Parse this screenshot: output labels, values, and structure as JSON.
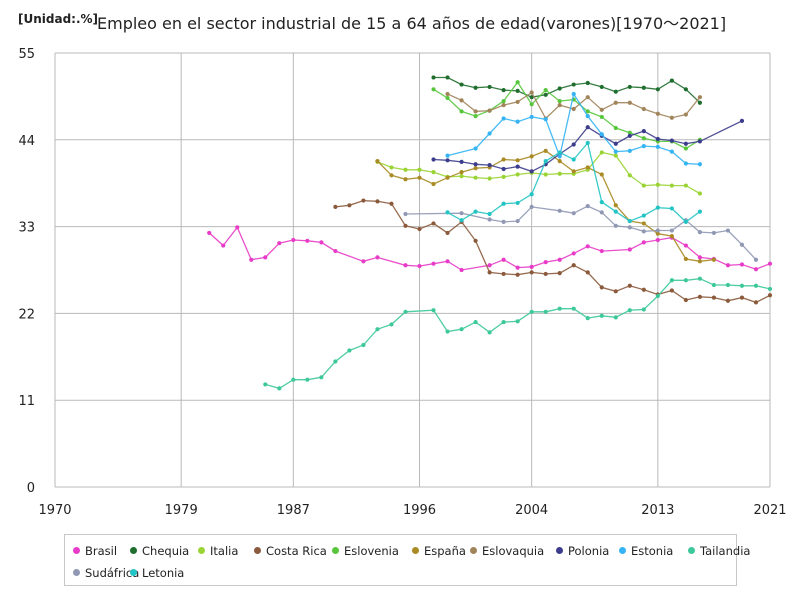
{
  "unit_label": "[Unidad:.%]",
  "title": "Empleo en el sector industrial de 15 a 64 años de edad(varones)[1970～2021]",
  "chart_data": {
    "type": "line",
    "title": "Empleo en el sector industrial de 15 a 64 años de edad(varones)[1970～2021]",
    "unit": "[Unidad:.%]",
    "xlim": [
      1970,
      2021
    ],
    "ylim": [
      0,
      55
    ],
    "x_ticks": [
      "1970",
      "1979",
      "1987",
      "1996",
      "2004",
      "2013",
      "2021"
    ],
    "y_ticks": [
      "0",
      "11",
      "22",
      "33",
      "44",
      "55"
    ],
    "grid": true,
    "legend_position": "bottom",
    "series": [
      {
        "name": "Brasil",
        "color": "#e83cc8",
        "points": [
          [
            1981,
            32.2
          ],
          [
            1982,
            30.6
          ],
          [
            1983,
            32.9
          ],
          [
            1984,
            28.8
          ],
          [
            1985,
            29.1
          ],
          [
            1986,
            30.9
          ],
          [
            1987,
            31.3
          ],
          [
            1988,
            31.2
          ],
          [
            1989,
            31.0
          ],
          [
            1990,
            29.9
          ],
          [
            1992,
            28.6
          ],
          [
            1993,
            29.1
          ],
          [
            1995,
            28.1
          ],
          [
            1996,
            28.0
          ],
          [
            1997,
            28.3
          ],
          [
            1998,
            28.6
          ],
          [
            1999,
            27.5
          ],
          [
            2001,
            28.1
          ],
          [
            2002,
            28.8
          ],
          [
            2003,
            27.8
          ],
          [
            2004,
            27.9
          ],
          [
            2005,
            28.5
          ],
          [
            2006,
            28.8
          ],
          [
            2007,
            29.6
          ],
          [
            2008,
            30.5
          ],
          [
            2009,
            29.9
          ],
          [
            2011,
            30.1
          ],
          [
            2012,
            31.0
          ],
          [
            2013,
            31.3
          ],
          [
            2014,
            31.6
          ],
          [
            2015,
            30.6
          ],
          [
            2016,
            29.1
          ],
          [
            2017,
            28.9
          ],
          [
            2018,
            28.1
          ],
          [
            2019,
            28.2
          ],
          [
            2020,
            27.6
          ],
          [
            2021,
            28.3
          ]
        ]
      },
      {
        "name": "Chequia",
        "color": "#1f6e2e",
        "points": [
          [
            1997,
            51.9
          ],
          [
            1998,
            51.9
          ],
          [
            1999,
            51.0
          ],
          [
            2000,
            50.6
          ],
          [
            2001,
            50.7
          ],
          [
            2002,
            50.3
          ],
          [
            2003,
            50.2
          ],
          [
            2004,
            49.4
          ],
          [
            2005,
            49.7
          ],
          [
            2006,
            50.5
          ],
          [
            2007,
            51.0
          ],
          [
            2008,
            51.2
          ],
          [
            2009,
            50.7
          ],
          [
            2010,
            50.1
          ],
          [
            2011,
            50.7
          ],
          [
            2012,
            50.6
          ],
          [
            2013,
            50.4
          ],
          [
            2014,
            51.5
          ],
          [
            2015,
            50.4
          ],
          [
            2016,
            48.7
          ]
        ]
      },
      {
        "name": "Italia",
        "color": "#9ad434",
        "points": [
          [
            1993,
            41.2
          ],
          [
            1994,
            40.5
          ],
          [
            1995,
            40.2
          ],
          [
            1996,
            40.2
          ],
          [
            1997,
            39.9
          ],
          [
            1998,
            39.3
          ],
          [
            1999,
            39.4
          ],
          [
            2000,
            39.2
          ],
          [
            2001,
            39.1
          ],
          [
            2002,
            39.3
          ],
          [
            2003,
            39.6
          ],
          [
            2004,
            39.8
          ],
          [
            2005,
            39.6
          ],
          [
            2006,
            39.7
          ],
          [
            2007,
            39.7
          ],
          [
            2008,
            40.2
          ],
          [
            2009,
            42.4
          ],
          [
            2010,
            42.0
          ],
          [
            2011,
            39.5
          ],
          [
            2012,
            38.2
          ],
          [
            2013,
            38.3
          ],
          [
            2014,
            38.2
          ],
          [
            2015,
            38.2
          ],
          [
            2016,
            37.2
          ]
        ]
      },
      {
        "name": "Costa Rica",
        "color": "#8b5a3c",
        "points": [
          [
            1990,
            35.5
          ],
          [
            1991,
            35.7
          ],
          [
            1992,
            36.3
          ],
          [
            1993,
            36.2
          ],
          [
            1994,
            35.9
          ],
          [
            1995,
            33.1
          ],
          [
            1996,
            32.7
          ],
          [
            1997,
            33.4
          ],
          [
            1998,
            32.2
          ],
          [
            1999,
            33.6
          ],
          [
            2000,
            31.2
          ],
          [
            2001,
            27.2
          ],
          [
            2002,
            27.0
          ],
          [
            2003,
            26.9
          ],
          [
            2004,
            27.2
          ],
          [
            2005,
            27.0
          ],
          [
            2006,
            27.1
          ],
          [
            2007,
            28.1
          ],
          [
            2008,
            27.2
          ],
          [
            2009,
            25.3
          ],
          [
            2010,
            24.8
          ],
          [
            2011,
            25.5
          ],
          [
            2012,
            25.0
          ],
          [
            2013,
            24.4
          ],
          [
            2014,
            24.9
          ],
          [
            2015,
            23.7
          ],
          [
            2016,
            24.1
          ],
          [
            2017,
            24.0
          ],
          [
            2018,
            23.6
          ],
          [
            2019,
            24.0
          ],
          [
            2020,
            23.4
          ],
          [
            2021,
            24.3
          ]
        ]
      },
      {
        "name": "Eslovenia",
        "color": "#58c63c",
        "points": [
          [
            1997,
            50.4
          ],
          [
            1998,
            49.3
          ],
          [
            1999,
            47.6
          ],
          [
            2000,
            47.0
          ],
          [
            2001,
            47.7
          ],
          [
            2002,
            48.9
          ],
          [
            2003,
            51.3
          ],
          [
            2004,
            48.5
          ],
          [
            2005,
            50.3
          ],
          [
            2006,
            48.9
          ],
          [
            2007,
            49.1
          ],
          [
            2008,
            47.6
          ],
          [
            2009,
            46.9
          ],
          [
            2010,
            45.5
          ],
          [
            2011,
            44.9
          ],
          [
            2012,
            44.2
          ],
          [
            2013,
            43.8
          ],
          [
            2014,
            43.8
          ],
          [
            2015,
            42.9
          ],
          [
            2016,
            44.0
          ]
        ]
      },
      {
        "name": "España",
        "color": "#a98a24",
        "points": [
          [
            1993,
            41.3
          ],
          [
            1994,
            39.5
          ],
          [
            1995,
            39.0
          ],
          [
            1996,
            39.2
          ],
          [
            1997,
            38.4
          ],
          [
            1998,
            39.2
          ],
          [
            1999,
            39.9
          ],
          [
            2000,
            40.4
          ],
          [
            2001,
            40.5
          ],
          [
            2002,
            41.5
          ],
          [
            2003,
            41.4
          ],
          [
            2004,
            41.9
          ],
          [
            2005,
            42.6
          ],
          [
            2006,
            41.3
          ],
          [
            2007,
            40.0
          ],
          [
            2008,
            40.5
          ],
          [
            2009,
            39.6
          ],
          [
            2010,
            35.7
          ],
          [
            2011,
            33.7
          ],
          [
            2012,
            33.4
          ],
          [
            2013,
            32.1
          ],
          [
            2014,
            31.8
          ],
          [
            2015,
            28.9
          ],
          [
            2016,
            28.6
          ],
          [
            2017,
            28.8
          ]
        ]
      },
      {
        "name": "Eslovaquia",
        "color": "#a1845a",
        "points": [
          [
            1998,
            49.8
          ],
          [
            1999,
            49.0
          ],
          [
            2000,
            47.6
          ],
          [
            2001,
            47.7
          ],
          [
            2002,
            48.4
          ],
          [
            2003,
            48.8
          ],
          [
            2004,
            50.0
          ],
          [
            2005,
            46.7
          ],
          [
            2006,
            48.4
          ],
          [
            2007,
            47.9
          ],
          [
            2008,
            49.4
          ],
          [
            2009,
            47.8
          ],
          [
            2010,
            48.7
          ],
          [
            2011,
            48.7
          ],
          [
            2012,
            47.9
          ],
          [
            2013,
            47.3
          ],
          [
            2014,
            46.8
          ],
          [
            2015,
            47.2
          ],
          [
            2016,
            49.4
          ]
        ]
      },
      {
        "name": "Polonia",
        "color": "#3c3c8c",
        "points": [
          [
            1997,
            41.5
          ],
          [
            1998,
            41.4
          ],
          [
            1999,
            41.2
          ],
          [
            2000,
            40.9
          ],
          [
            2001,
            40.8
          ],
          [
            2002,
            40.3
          ],
          [
            2003,
            40.6
          ],
          [
            2004,
            40.0
          ],
          [
            2005,
            40.9
          ],
          [
            2006,
            42.2
          ],
          [
            2007,
            43.4
          ],
          [
            2008,
            45.6
          ],
          [
            2009,
            44.5
          ],
          [
            2010,
            43.5
          ],
          [
            2011,
            44.5
          ],
          [
            2012,
            45.1
          ],
          [
            2013,
            44.1
          ],
          [
            2014,
            43.9
          ],
          [
            2015,
            43.5
          ],
          [
            2016,
            43.8
          ],
          [
            2019,
            46.4
          ]
        ]
      },
      {
        "name": "Estonia",
        "color": "#34b4f4",
        "points": [
          [
            1998,
            42.0
          ],
          [
            2000,
            42.9
          ],
          [
            2001,
            44.8
          ],
          [
            2002,
            46.7
          ],
          [
            2003,
            46.3
          ],
          [
            2004,
            46.9
          ],
          [
            2005,
            46.6
          ],
          [
            2006,
            41.9
          ],
          [
            2007,
            49.8
          ],
          [
            2008,
            47.0
          ],
          [
            2009,
            44.7
          ],
          [
            2010,
            42.5
          ],
          [
            2011,
            42.6
          ],
          [
            2012,
            43.2
          ],
          [
            2013,
            43.1
          ],
          [
            2014,
            42.5
          ],
          [
            2015,
            41.0
          ],
          [
            2016,
            40.9
          ]
        ]
      },
      {
        "name": "Tailandia",
        "color": "#3cc89a",
        "points": [
          [
            1985,
            13.0
          ],
          [
            1986,
            12.5
          ],
          [
            1987,
            13.6
          ],
          [
            1988,
            13.6
          ],
          [
            1989,
            13.9
          ],
          [
            1990,
            15.9
          ],
          [
            1991,
            17.3
          ],
          [
            1992,
            18.0
          ],
          [
            1993,
            20.0
          ],
          [
            1994,
            20.6
          ],
          [
            1995,
            22.2
          ],
          [
            1997,
            22.4
          ],
          [
            1998,
            19.7
          ],
          [
            1999,
            20.0
          ],
          [
            2000,
            20.9
          ],
          [
            2001,
            19.6
          ],
          [
            2002,
            20.9
          ],
          [
            2003,
            21.0
          ],
          [
            2004,
            22.2
          ],
          [
            2005,
            22.2
          ],
          [
            2006,
            22.6
          ],
          [
            2007,
            22.6
          ],
          [
            2008,
            21.4
          ],
          [
            2009,
            21.7
          ],
          [
            2010,
            21.5
          ],
          [
            2011,
            22.4
          ],
          [
            2012,
            22.5
          ],
          [
            2013,
            24.2
          ],
          [
            2014,
            26.2
          ],
          [
            2015,
            26.2
          ],
          [
            2016,
            26.4
          ],
          [
            2017,
            25.6
          ],
          [
            2018,
            25.6
          ],
          [
            2019,
            25.5
          ],
          [
            2020,
            25.5
          ],
          [
            2021,
            25.1
          ]
        ]
      },
      {
        "name": "Sudáfrica",
        "color": "#9098b4",
        "points": [
          [
            1995,
            34.6
          ],
          [
            1999,
            34.7
          ],
          [
            2001,
            33.9
          ],
          [
            2002,
            33.6
          ],
          [
            2003,
            33.7
          ],
          [
            2004,
            35.5
          ],
          [
            2006,
            35.0
          ],
          [
            2007,
            34.7
          ],
          [
            2008,
            35.6
          ],
          [
            2009,
            34.8
          ],
          [
            2010,
            33.1
          ],
          [
            2011,
            32.9
          ],
          [
            2012,
            32.4
          ],
          [
            2013,
            32.5
          ],
          [
            2014,
            32.5
          ],
          [
            2015,
            33.8
          ],
          [
            2016,
            32.3
          ],
          [
            2017,
            32.2
          ],
          [
            2018,
            32.5
          ],
          [
            2019,
            30.7
          ],
          [
            2020,
            28.8
          ]
        ]
      },
      {
        "name": "Letonia",
        "color": "#22c4c4",
        "points": [
          [
            1998,
            34.8
          ],
          [
            1999,
            33.8
          ],
          [
            2000,
            34.9
          ],
          [
            2001,
            34.6
          ],
          [
            2002,
            35.9
          ],
          [
            2003,
            36.0
          ],
          [
            2004,
            37.1
          ],
          [
            2005,
            41.3
          ],
          [
            2006,
            42.4
          ],
          [
            2007,
            41.5
          ],
          [
            2008,
            43.6
          ],
          [
            2009,
            36.1
          ],
          [
            2010,
            34.9
          ],
          [
            2011,
            33.7
          ],
          [
            2012,
            34.4
          ],
          [
            2013,
            35.4
          ],
          [
            2014,
            35.3
          ],
          [
            2015,
            33.6
          ],
          [
            2016,
            34.9
          ]
        ]
      }
    ]
  }
}
